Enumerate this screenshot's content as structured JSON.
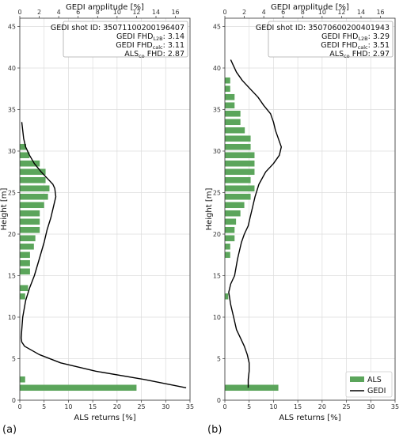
{
  "chart_data": [
    {
      "panel_label": "(a)",
      "type": "bar+line",
      "top_axis_label": "GEDI amplitude [%]",
      "bottom_axis_label": "ALS returns [%]",
      "ylabel": "Height [m]",
      "bottom_xlim": [
        0,
        35
      ],
      "bottom_xticks": [
        0,
        5,
        10,
        15,
        20,
        25,
        30,
        35
      ],
      "top_xlim": [
        0,
        17.5
      ],
      "top_xticks": [
        0,
        2,
        4,
        6,
        8,
        10,
        12,
        14,
        16
      ],
      "ylim": [
        0,
        46
      ],
      "yticks": [
        0,
        5,
        10,
        15,
        20,
        25,
        30,
        35,
        40,
        45
      ],
      "grid": true,
      "info": {
        "shot_label": "GEDI shot ID:",
        "shot_id": "35071100200196407",
        "l2b_label": "GEDI FHD",
        "l2b_sub": "L2B",
        "l2b_value": "3.14",
        "calc_label": "GEDI FHD",
        "calc_sub": "calc",
        "calc_value": "3.11",
        "als_label": "ALS",
        "als_sub": "co",
        "als_suffix": " FHD",
        "als_value": "2.87"
      },
      "als_bars": {
        "name": "ALS",
        "heights": [
          1.5,
          2.5,
          12.5,
          13.5,
          15.5,
          16.5,
          17.5,
          18.5,
          19.5,
          20.5,
          21.5,
          22.5,
          23.5,
          24.5,
          25.5,
          26.5,
          27.5,
          28.5,
          29.5,
          30.5
        ],
        "values": [
          24,
          1.1,
          1.1,
          1.7,
          2.1,
          2.1,
          2.1,
          2.9,
          3.2,
          4.1,
          4.1,
          4.1,
          5.0,
          5.8,
          6.1,
          5.3,
          5.3,
          4.1,
          2.0,
          1.3
        ]
      },
      "gedi_line": {
        "name": "GEDI",
        "heights": [
          1.5,
          2.5,
          3.5,
          4.5,
          5.5,
          6.5,
          7.0,
          7.5,
          8.5,
          10.0,
          12.0,
          13.5,
          15.0,
          17.0,
          19.0,
          20.5,
          22.0,
          23.5,
          24.5,
          25.5,
          26.0,
          26.5,
          27.5,
          28.5,
          29.5,
          30.5,
          31.5,
          32.5,
          33.5
        ],
        "values": [
          17.1,
          12.8,
          7.8,
          4.2,
          2.0,
          0.5,
          0.2,
          0.15,
          0.2,
          0.3,
          0.6,
          1.0,
          1.5,
          2.0,
          2.5,
          2.8,
          3.2,
          3.5,
          3.7,
          3.6,
          3.4,
          3.0,
          2.2,
          1.5,
          1.0,
          0.6,
          0.4,
          0.3,
          0.2
        ]
      }
    },
    {
      "panel_label": "(b)",
      "type": "bar+line",
      "top_axis_label": "GEDI amplitude [%]",
      "bottom_axis_label": "ALS returns [%]",
      "ylabel": "Height [m]",
      "bottom_xlim": [
        0,
        35
      ],
      "bottom_xticks": [
        0,
        5,
        10,
        15,
        20,
        25,
        30,
        35
      ],
      "top_xlim": [
        0,
        17.5
      ],
      "top_xticks": [
        0,
        2,
        4,
        6,
        8,
        10,
        12,
        14,
        16
      ],
      "ylim": [
        0,
        46
      ],
      "yticks": [
        0,
        5,
        10,
        15,
        20,
        25,
        30,
        35,
        40,
        45
      ],
      "grid": true,
      "info": {
        "shot_label": "GEDI shot ID:",
        "shot_id": "35070600200401943",
        "l2b_label": "GEDI FHD",
        "l2b_sub": "L2B",
        "l2b_value": "3.29",
        "calc_label": "GEDI FHD",
        "calc_sub": "calc",
        "calc_value": "3.51",
        "als_label": "ALS",
        "als_sub": "co",
        "als_suffix": " FHD",
        "als_value": "2.97"
      },
      "legend": {
        "position": "bottom-right"
      },
      "als_bars": {
        "name": "ALS",
        "heights": [
          1.5,
          12.5,
          17.5,
          18.5,
          19.5,
          20.5,
          21.5,
          22.5,
          23.5,
          24.5,
          25.5,
          26.5,
          27.5,
          28.5,
          29.5,
          30.5,
          31.5,
          32.5,
          33.5,
          34.5,
          35.5,
          36.5,
          37.5,
          38.5
        ],
        "values": [
          11.0,
          0.7,
          1.1,
          1.1,
          2.0,
          2.0,
          2.3,
          3.2,
          4.0,
          5.3,
          6.1,
          5.3,
          6.1,
          6.1,
          6.1,
          5.3,
          5.3,
          4.1,
          3.2,
          3.2,
          2.0,
          2.0,
          1.1,
          1.1
        ]
      },
      "gedi_line": {
        "name": "GEDI",
        "heights": [
          1.5,
          2.5,
          3.5,
          4.5,
          5.5,
          6.5,
          7.5,
          8.5,
          10.0,
          11.5,
          13.0,
          14.0,
          15.0,
          17.0,
          19.0,
          20.0,
          21.0,
          22.0,
          23.0,
          24.5,
          26.0,
          27.5,
          28.5,
          29.5,
          30.5,
          31.5,
          32.5,
          33.5,
          34.5,
          35.5,
          36.5,
          37.5,
          38.5,
          39.5,
          40.5,
          41.0
        ],
        "values": [
          2.4,
          2.4,
          2.5,
          2.5,
          2.3,
          2.0,
          1.6,
          1.2,
          0.9,
          0.6,
          0.4,
          0.6,
          1.0,
          1.3,
          1.7,
          2.0,
          2.4,
          2.6,
          2.8,
          3.1,
          3.5,
          4.2,
          5.0,
          5.6,
          5.8,
          5.5,
          5.2,
          5.0,
          4.7,
          4.0,
          3.4,
          2.6,
          1.8,
          1.2,
          0.8,
          0.6
        ]
      }
    }
  ]
}
